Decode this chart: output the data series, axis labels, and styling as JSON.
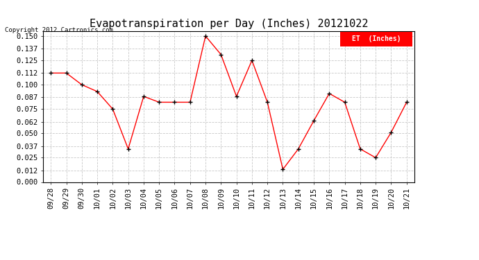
{
  "title": "Evapotranspiration per Day (Inches) 20121022",
  "copyright_text": "Copyright 2012 Cartronics.com",
  "legend_label": "ET  (Inches)",
  "legend_bg": "#ff0000",
  "legend_text_color": "#ffffff",
  "x_labels": [
    "09/28",
    "09/29",
    "09/30",
    "10/01",
    "10/02",
    "10/03",
    "10/04",
    "10/05",
    "10/06",
    "10/07",
    "10/08",
    "10/09",
    "10/10",
    "10/11",
    "10/12",
    "10/13",
    "10/14",
    "10/15",
    "10/16",
    "10/17",
    "10/18",
    "10/19",
    "10/20",
    "10/21"
  ],
  "y_values": [
    0.112,
    0.112,
    0.1,
    0.093,
    0.075,
    0.034,
    0.088,
    0.082,
    0.082,
    0.082,
    0.15,
    0.131,
    0.088,
    0.125,
    0.082,
    0.013,
    0.034,
    0.063,
    0.091,
    0.082,
    0.034,
    0.025,
    0.051,
    0.082
  ],
  "y_ticks": [
    0.0,
    0.012,
    0.025,
    0.037,
    0.05,
    0.062,
    0.075,
    0.087,
    0.1,
    0.112,
    0.125,
    0.137,
    0.15
  ],
  "line_color": "#ff0000",
  "marker_color": "#000000",
  "bg_color": "#ffffff",
  "plot_bg_color": "#ffffff",
  "grid_color": "#c8c8c8",
  "title_fontsize": 11,
  "copyright_fontsize": 6.5,
  "tick_fontsize": 7.5,
  "legend_fontsize": 7,
  "ylim": [
    0.0,
    0.155
  ],
  "figsize": [
    6.9,
    3.75
  ],
  "dpi": 100
}
